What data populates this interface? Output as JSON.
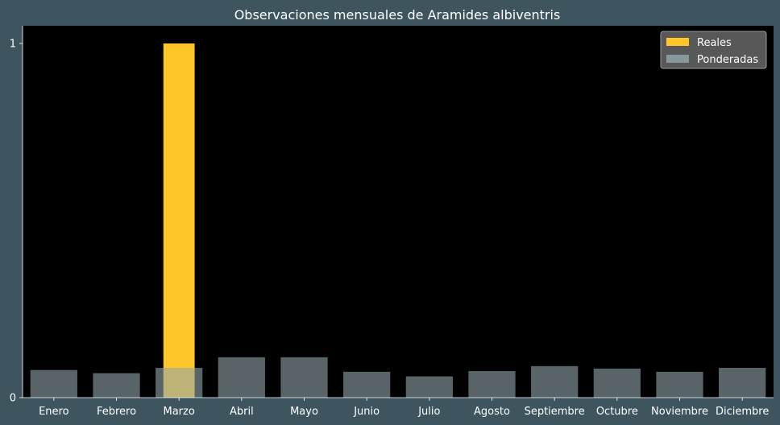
{
  "chart_data": {
    "type": "bar",
    "title": "Observaciones mensuales de Aramides albiventris",
    "xlabel": "",
    "ylabel": "",
    "categories": [
      "Enero",
      "Febrero",
      "Marzo",
      "Abril",
      "Mayo",
      "Junio",
      "Julio",
      "Agosto",
      "Septiembre",
      "Octubre",
      "Noviembre",
      "Diciembre"
    ],
    "series": [
      {
        "name": "Reales",
        "color": "#ffc629",
        "values": [
          0,
          0,
          1,
          0,
          0,
          0,
          0,
          0,
          0,
          0,
          0,
          0
        ]
      },
      {
        "name": "Ponderadas",
        "color": "#93a7ab",
        "values": [
          0.078,
          0.069,
          0.084,
          0.114,
          0.114,
          0.073,
          0.06,
          0.075,
          0.089,
          0.082,
          0.073,
          0.084
        ]
      }
    ],
    "ylim": [
      0,
      1.05
    ],
    "yticks": [
      "0",
      "1"
    ],
    "grid": false,
    "legend_position": "top-right",
    "background": "#000000",
    "figure_background": "#3e5560"
  }
}
